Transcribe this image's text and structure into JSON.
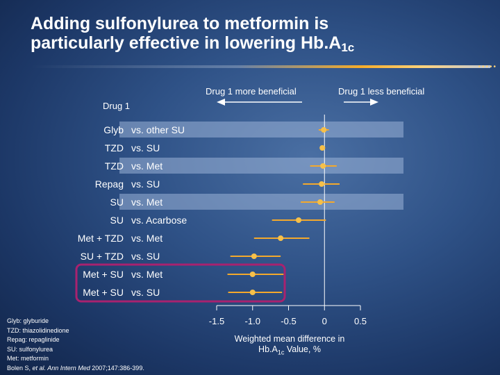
{
  "slide": {
    "title_line1": "Adding sulfonylurea to metformin is",
    "title_line2_main": "particularly effective in lowering Hb.A",
    "title_line2_sub": "1c"
  },
  "chart_data": {
    "type": "forest",
    "arrow_left_label": "Drug 1 more beneficial",
    "arrow_right_label": "Drug 1 less beneficial",
    "drug_column_header": "Drug 1",
    "vs_label": "vs.",
    "rows": [
      {
        "drug": "Glyb",
        "comparator": "other SU",
        "mean": -0.01,
        "ci": [
          -0.08,
          0.06
        ]
      },
      {
        "drug": "TZD",
        "comparator": "SU",
        "mean": -0.03,
        "ci": [
          -0.06,
          0.01
        ]
      },
      {
        "drug": "TZD",
        "comparator": "Met",
        "mean": -0.02,
        "ci": [
          -0.2,
          0.17
        ]
      },
      {
        "drug": "Repag",
        "comparator": "SU",
        "mean": -0.04,
        "ci": [
          -0.3,
          0.21
        ]
      },
      {
        "drug": "SU",
        "comparator": "Met",
        "mean": -0.06,
        "ci": [
          -0.33,
          0.14
        ]
      },
      {
        "drug": "SU",
        "comparator": "Acarbose",
        "mean": -0.36,
        "ci": [
          -0.73,
          0.02
        ]
      },
      {
        "drug": "Met + TZD",
        "comparator": "Met",
        "mean": -0.61,
        "ci": [
          -0.98,
          -0.21
        ]
      },
      {
        "drug": "SU + TZD",
        "comparator": "SU",
        "mean": -0.98,
        "ci": [
          -1.31,
          -0.61
        ]
      },
      {
        "drug": "Met + SU",
        "comparator": "Met",
        "mean": -1.0,
        "ci": [
          -1.35,
          -0.57
        ]
      },
      {
        "drug": "Met + SU",
        "comparator": "SU",
        "mean": -1.0,
        "ci": [
          -1.34,
          -0.59
        ]
      }
    ],
    "highlighted_rows": [
      8,
      9
    ],
    "x_ticks": [
      -1.5,
      -1.0,
      -0.5,
      0,
      0.5
    ],
    "x_tick_labels": [
      "-1.5",
      "-1.0",
      "-0.5",
      "0",
      "0.5"
    ],
    "xlim": [
      -1.5,
      0.5
    ],
    "xlabel_main": "Weighted mean difference in",
    "xlabel_hba": "Hb.A",
    "xlabel_sub": "1c",
    "xlabel_tail": " Value, %",
    "colors": {
      "marker": "#f6c04a",
      "ci_line": "#f4a92c",
      "highlight_box": "#a8226f",
      "row_band": "rgba(155,178,215,0.55)"
    }
  },
  "footnotes": {
    "l1": "Glyb: glyburide",
    "l2": "TZD: thiazolidinedione",
    "l3": "Repag: repaglinide",
    "l4": "SU: sulfonylurea",
    "l5": "Met: metformin",
    "l6_authors": "Bolen S, ",
    "l6_etal": "et al.",
    "l6_journal": " Ann Intern Med",
    "l6_cite": " 2007;147:386-399."
  }
}
